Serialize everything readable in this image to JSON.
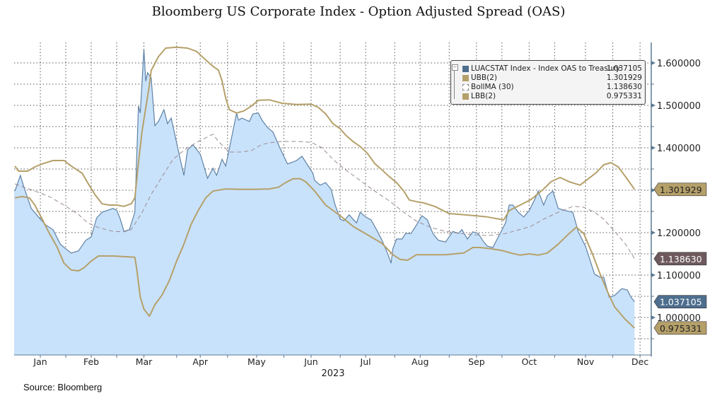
{
  "title": "Bloomberg US Corporate Index - Option Adjusted Spread (OAS)",
  "source": "Source: Bloomberg",
  "legend": [
    {
      "name": "LUACSTAT Index - Index OAS to Treasury",
      "value": "1.037105",
      "color": "#4e6e8e",
      "style": "area"
    },
    {
      "name": "UBB(2)",
      "value": "1.301929",
      "color": "#b5a06a",
      "style": "line"
    },
    {
      "name": "BollMA (30)",
      "value": "1.138630",
      "color": "#8a7a80",
      "style": "dashed"
    },
    {
      "name": "LBB(2)",
      "value": "0.975331",
      "color": "#b5a06a",
      "style": "line"
    }
  ],
  "chart_data": {
    "type": "line",
    "title": "Bloomberg US Corporate Index - Option Adjusted Spread (OAS)",
    "xlabel": "2023",
    "ylabel": "",
    "x_units": "day of year 2023",
    "xlim": [
      0,
      350
    ],
    "ylim": [
      0.912,
      1.648
    ],
    "y_axis_side": "right",
    "grid": true,
    "legend_position": "top-right",
    "x_ticks": [
      {
        "label": "Jan",
        "day": 15
      },
      {
        "label": "Feb",
        "day": 43
      },
      {
        "label": "Mar",
        "day": 72
      },
      {
        "label": "Apr",
        "day": 103
      },
      {
        "label": "May",
        "day": 134
      },
      {
        "label": "Jun",
        "day": 164
      },
      {
        "label": "Jul",
        "day": 194
      },
      {
        "label": "Aug",
        "day": 224
      },
      {
        "label": "Sep",
        "day": 255
      },
      {
        "label": "Oct",
        "day": 284
      },
      {
        "label": "Nov",
        "day": 315
      },
      {
        "label": "Dec",
        "day": 345
      }
    ],
    "x_grid_days": [
      0,
      15,
      29,
      43,
      57,
      72,
      90,
      103,
      118,
      134,
      149,
      164,
      180,
      194,
      210,
      224,
      240,
      255,
      269,
      284,
      298,
      315,
      330,
      345
    ],
    "y_ticks": [
      "1.000000",
      "1.100000",
      "1.200000",
      "1.300000",
      "1.400000",
      "1.500000",
      "1.600000"
    ],
    "y_tick_values": [
      1.0,
      1.1,
      1.2,
      1.3,
      1.4,
      1.5,
      1.6
    ],
    "y_grid_values": [
      0.95,
      1.0,
      1.05,
      1.1,
      1.15,
      1.2,
      1.25,
      1.3,
      1.35,
      1.4,
      1.45,
      1.5,
      1.55,
      1.6
    ],
    "end_labels": [
      {
        "series": "UBB(2)",
        "value": 1.301929,
        "label": "1.301929",
        "bg": "#b5a06a",
        "fg": "#222"
      },
      {
        "series": "BollMA (30)",
        "value": 1.13863,
        "label": "1.138630",
        "bg": "#6e5a5e",
        "fg": "#fff"
      },
      {
        "series": "LUACSTAT Index - Index OAS to Treasury",
        "value": 1.037105,
        "label": "1.037105",
        "bg": "#4e6e8e",
        "fg": "#fff"
      },
      {
        "series": "LBB(2)",
        "value": 0.975331,
        "label": "0.975331",
        "bg": "#b5a06a",
        "fg": "#222"
      }
    ],
    "series": [
      {
        "name": "LUACSTAT Index - Index OAS to Treasury",
        "type": "area",
        "color": "#5f82a3",
        "fill": "#c9e2fb",
        "x": [
          1,
          4,
          6,
          10,
          15,
          18,
          22,
          26,
          29,
          32,
          36,
          40,
          43,
          46,
          49,
          55,
          57,
          59,
          61,
          64,
          67,
          69,
          70,
          72,
          73,
          74,
          76,
          78,
          80,
          83,
          85,
          87,
          92,
          94,
          96,
          99,
          103,
          107,
          110,
          112,
          115,
          117,
          119,
          123,
          124,
          126,
          130,
          132,
          135,
          137,
          140,
          143,
          145,
          147,
          151,
          153,
          156,
          159,
          162,
          165,
          166,
          169,
          172,
          175,
          177,
          180,
          182,
          185,
          187,
          189,
          191,
          194,
          197,
          200,
          203,
          206,
          208,
          209,
          211,
          214,
          216,
          219,
          222,
          225,
          228,
          231,
          234,
          238,
          242,
          245,
          247,
          250,
          253,
          256,
          259,
          261,
          264,
          267,
          271,
          273,
          275,
          278,
          281,
          284,
          287,
          289,
          292,
          294,
          297,
          300,
          304,
          308,
          311,
          315,
          320,
          323,
          325,
          328,
          331,
          335,
          338,
          340,
          342
        ],
        "y": [
          1.298,
          1.335,
          1.307,
          1.257,
          1.232,
          1.218,
          1.207,
          1.173,
          1.162,
          1.152,
          1.157,
          1.182,
          1.19,
          1.235,
          1.248,
          1.257,
          1.253,
          1.232,
          1.203,
          1.207,
          1.248,
          1.498,
          1.482,
          1.632,
          1.557,
          1.577,
          1.565,
          1.452,
          1.462,
          1.49,
          1.457,
          1.47,
          1.373,
          1.335,
          1.395,
          1.407,
          1.385,
          1.328,
          1.352,
          1.335,
          1.373,
          1.357,
          1.398,
          1.482,
          1.465,
          1.47,
          1.462,
          1.48,
          1.482,
          1.465,
          1.448,
          1.437,
          1.418,
          1.398,
          1.362,
          1.365,
          1.37,
          1.38,
          1.36,
          1.34,
          1.323,
          1.312,
          1.318,
          1.302,
          1.268,
          1.232,
          1.228,
          1.242,
          1.232,
          1.223,
          1.248,
          1.237,
          1.23,
          1.207,
          1.182,
          1.152,
          1.128,
          1.162,
          1.185,
          1.185,
          1.198,
          1.198,
          1.218,
          1.24,
          1.23,
          1.198,
          1.182,
          1.178,
          1.203,
          1.198,
          1.207,
          1.185,
          1.202,
          1.198,
          1.178,
          1.168,
          1.165,
          1.19,
          1.223,
          1.265,
          1.265,
          1.248,
          1.237,
          1.252,
          1.278,
          1.298,
          1.265,
          1.287,
          1.298,
          1.257,
          1.252,
          1.248,
          1.202,
          1.168,
          1.102,
          1.095,
          1.095,
          1.048,
          1.052,
          1.068,
          1.065,
          1.048,
          1.037105
        ]
      },
      {
        "name": "UBB(2)",
        "type": "line",
        "color": "#b5a06a",
        "x": [
          1,
          3,
          8,
          12,
          16,
          22,
          28,
          32,
          38,
          41,
          45,
          49,
          53,
          57,
          61,
          65,
          67,
          69,
          71,
          75,
          76,
          80,
          84,
          90,
          96,
          101,
          106,
          110,
          113,
          115,
          117,
          119,
          123,
          127,
          131,
          135,
          141,
          148,
          156,
          164,
          168,
          172,
          176,
          180,
          183,
          187,
          191,
          195,
          199,
          203,
          207,
          211,
          215,
          218,
          222,
          226,
          232,
          240,
          246,
          254,
          261,
          270,
          273,
          279,
          285,
          289,
          292,
          296,
          301,
          306,
          312,
          316,
          321,
          325,
          329,
          333,
          337,
          342
        ],
        "y": [
          1.357,
          1.345,
          1.345,
          1.355,
          1.362,
          1.37,
          1.37,
          1.357,
          1.34,
          1.318,
          1.29,
          1.268,
          1.265,
          1.265,
          1.262,
          1.268,
          1.282,
          1.365,
          1.44,
          1.548,
          1.582,
          1.615,
          1.635,
          1.637,
          1.635,
          1.627,
          1.607,
          1.592,
          1.583,
          1.558,
          1.517,
          1.49,
          1.482,
          1.487,
          1.498,
          1.512,
          1.513,
          1.505,
          1.502,
          1.503,
          1.495,
          1.48,
          1.457,
          1.445,
          1.43,
          1.415,
          1.403,
          1.387,
          1.363,
          1.348,
          1.332,
          1.318,
          1.298,
          1.277,
          1.273,
          1.27,
          1.262,
          1.245,
          1.243,
          1.24,
          1.237,
          1.23,
          1.252,
          1.265,
          1.278,
          1.292,
          1.303,
          1.32,
          1.33,
          1.32,
          1.312,
          1.325,
          1.342,
          1.36,
          1.365,
          1.355,
          1.332,
          1.301929
        ]
      },
      {
        "name": "BollMA (30)",
        "type": "line",
        "dashed": true,
        "color": "#9a8a90",
        "x": [
          1,
          6,
          12,
          20,
          28,
          36,
          41,
          47,
          55,
          61,
          65,
          71,
          76,
          82,
          88,
          92,
          96,
          102,
          110,
          113,
          119,
          125,
          131,
          137,
          143,
          148,
          156,
          164,
          170,
          176,
          183,
          191,
          199,
          207,
          215,
          222,
          230,
          238,
          246,
          254,
          261,
          270,
          277,
          285,
          292,
          300,
          308,
          314,
          320,
          325,
          331,
          337,
          342
        ],
        "y": [
          1.315,
          1.307,
          1.298,
          1.285,
          1.265,
          1.243,
          1.223,
          1.212,
          1.203,
          1.202,
          1.207,
          1.248,
          1.29,
          1.332,
          1.373,
          1.387,
          1.4,
          1.415,
          1.432,
          1.415,
          1.39,
          1.39,
          1.393,
          1.408,
          1.413,
          1.415,
          1.415,
          1.413,
          1.4,
          1.373,
          1.348,
          1.323,
          1.298,
          1.275,
          1.248,
          1.227,
          1.212,
          1.203,
          1.198,
          1.195,
          1.193,
          1.197,
          1.205,
          1.215,
          1.232,
          1.248,
          1.262,
          1.26,
          1.248,
          1.232,
          1.203,
          1.173,
          1.13863
        ]
      },
      {
        "name": "LBB(2)",
        "type": "line",
        "color": "#b5a06a",
        "x": [
          1,
          5,
          9,
          12,
          16,
          20,
          24,
          28,
          32,
          36,
          39,
          43,
          47,
          55,
          67,
          68,
          70,
          72,
          75,
          78,
          82,
          86,
          90,
          94,
          98,
          102,
          106,
          110,
          117,
          125,
          133,
          141,
          146,
          150,
          154,
          158,
          161,
          166,
          172,
          180,
          187,
          195,
          203,
          209,
          213,
          217,
          222,
          230,
          238,
          248,
          253,
          257,
          263,
          269,
          274,
          279,
          284,
          289,
          294,
          300,
          306,
          310,
          314,
          319,
          323,
          327,
          331,
          337,
          342
        ],
        "y": [
          1.282,
          1.285,
          1.282,
          1.265,
          1.232,
          1.198,
          1.168,
          1.128,
          1.112,
          1.11,
          1.117,
          1.133,
          1.145,
          1.145,
          1.142,
          1.115,
          1.048,
          1.02,
          1.003,
          1.03,
          1.053,
          1.087,
          1.133,
          1.173,
          1.22,
          1.253,
          1.282,
          1.298,
          1.303,
          1.302,
          1.302,
          1.303,
          1.307,
          1.318,
          1.327,
          1.327,
          1.32,
          1.298,
          1.265,
          1.24,
          1.215,
          1.195,
          1.175,
          1.148,
          1.137,
          1.135,
          1.148,
          1.148,
          1.148,
          1.152,
          1.165,
          1.165,
          1.162,
          1.158,
          1.152,
          1.147,
          1.15,
          1.147,
          1.152,
          1.173,
          1.198,
          1.213,
          1.198,
          1.148,
          1.103,
          1.062,
          1.025,
          0.995,
          0.975331
        ]
      }
    ]
  }
}
